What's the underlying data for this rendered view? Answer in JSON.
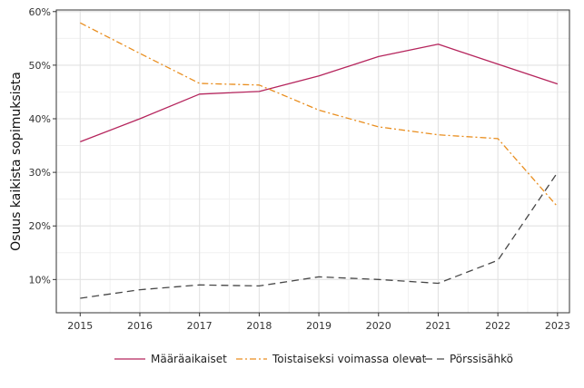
{
  "chart_data": {
    "type": "line",
    "title": "",
    "xlabel": "",
    "ylabel": "Osuus kaikista sopimuksista",
    "x": [
      2015,
      2016,
      2017,
      2018,
      2019,
      2020,
      2021,
      2022,
      2023
    ],
    "x_tick_labels": [
      "2015",
      "2016",
      "2017",
      "2018",
      "2019",
      "2020",
      "2021",
      "2022",
      "2023"
    ],
    "xlim": [
      2014.6,
      2023.2
    ],
    "ylim": [
      3.8,
      60.3
    ],
    "y_ticks": [
      10,
      20,
      30,
      40,
      50,
      60
    ],
    "y_tick_labels": [
      "10%",
      "20%",
      "30%",
      "40%",
      "50%",
      "60%"
    ],
    "grid": true,
    "legend_position": "bottom",
    "series": [
      {
        "name": "Määräaikaiset",
        "color": "#b5245c",
        "dash": "solid",
        "values": [
          35.7,
          40.0,
          44.6,
          45.1,
          48.0,
          51.6,
          53.9,
          50.2,
          46.5
        ]
      },
      {
        "name": "Toistaiseksi voimassa olevat",
        "color": "#e98e1f",
        "dash": "dashdot",
        "values": [
          57.9,
          52.2,
          46.6,
          46.3,
          41.6,
          38.5,
          37.0,
          36.3,
          23.6
        ]
      },
      {
        "name": "Pörssisähkö",
        "color": "#474747",
        "dash": "longdash",
        "values": [
          6.5,
          8.1,
          9.0,
          8.8,
          10.5,
          10.0,
          9.3,
          13.6,
          30.0
        ]
      }
    ]
  }
}
